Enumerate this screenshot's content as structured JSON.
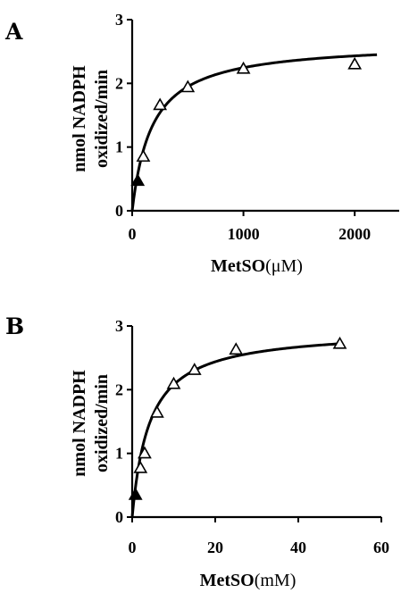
{
  "chart_data": [
    {
      "panel_label": "A",
      "type": "scatter",
      "fit": "hyperbolic",
      "ylabel_line1": "nmol NADPH",
      "ylabel_line2": "oxidized/min",
      "xlabel_main": "MetSO",
      "xlabel_unit": "(μM)",
      "xlim": [
        0,
        2400
      ],
      "ylim": [
        0,
        3
      ],
      "xticks": [
        0,
        1000,
        2000
      ],
      "yticks": [
        0,
        1,
        2,
        3
      ],
      "curve_xmax": 2200,
      "vmax": 2.65,
      "km": 180,
      "points": [
        {
          "x": 50,
          "y": 0.47
        },
        {
          "x": 100,
          "y": 0.85
        },
        {
          "x": 250,
          "y": 1.66
        },
        {
          "x": 500,
          "y": 1.94
        },
        {
          "x": 1000,
          "y": 2.23
        },
        {
          "x": 2000,
          "y": 2.3
        }
      ]
    },
    {
      "panel_label": "B",
      "type": "scatter",
      "fit": "hyperbolic",
      "ylabel_line1": "nmol NADPH",
      "ylabel_line2": "oxidized/min",
      "xlabel_main": "MetSO",
      "xlabel_unit": "(mM)",
      "xlim": [
        0,
        60
      ],
      "ylim": [
        0,
        3
      ],
      "xticks": [
        0,
        20,
        40,
        60
      ],
      "yticks": [
        0,
        1,
        2,
        3
      ],
      "curve_xmax": 50,
      "vmax": 2.95,
      "km": 4.2,
      "points": [
        {
          "x": 0.8,
          "y": 0.35
        },
        {
          "x": 2,
          "y": 0.77
        },
        {
          "x": 3,
          "y": 1.0
        },
        {
          "x": 6,
          "y": 1.64
        },
        {
          "x": 10,
          "y": 2.09
        },
        {
          "x": 15,
          "y": 2.31
        },
        {
          "x": 25,
          "y": 2.63
        },
        {
          "x": 50,
          "y": 2.72
        }
      ]
    }
  ]
}
